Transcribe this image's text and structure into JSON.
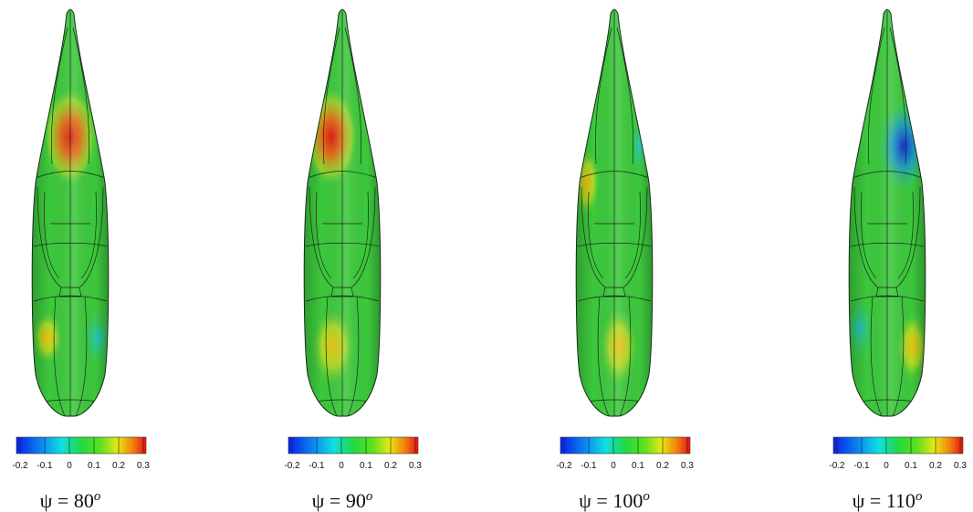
{
  "panels": [
    {
      "colorbar_ticks": [
        "-0.2",
        "-0.1",
        "0",
        "0.1",
        "0.2",
        "0.3"
      ],
      "label": {
        "main": "ψ = 80",
        "sup": "o"
      }
    },
    {
      "colorbar_ticks": [
        "-0.2",
        "-0.1",
        "0",
        "0.1",
        "0.2",
        "0.3"
      ],
      "label": {
        "main": "ψ = 90",
        "sup": "o"
      }
    },
    {
      "colorbar_ticks": [
        "-0.2",
        "-0.1",
        "0",
        "0.1",
        "0.2",
        "0.3"
      ],
      "label": {
        "main": "ψ = 100",
        "sup": "o"
      }
    },
    {
      "colorbar_ticks": [
        "-0.2",
        "-0.1",
        "0",
        "0.1",
        "0.2",
        "0.3"
      ],
      "label": {
        "main": "ψ = 110",
        "sup": "o"
      }
    }
  ]
}
